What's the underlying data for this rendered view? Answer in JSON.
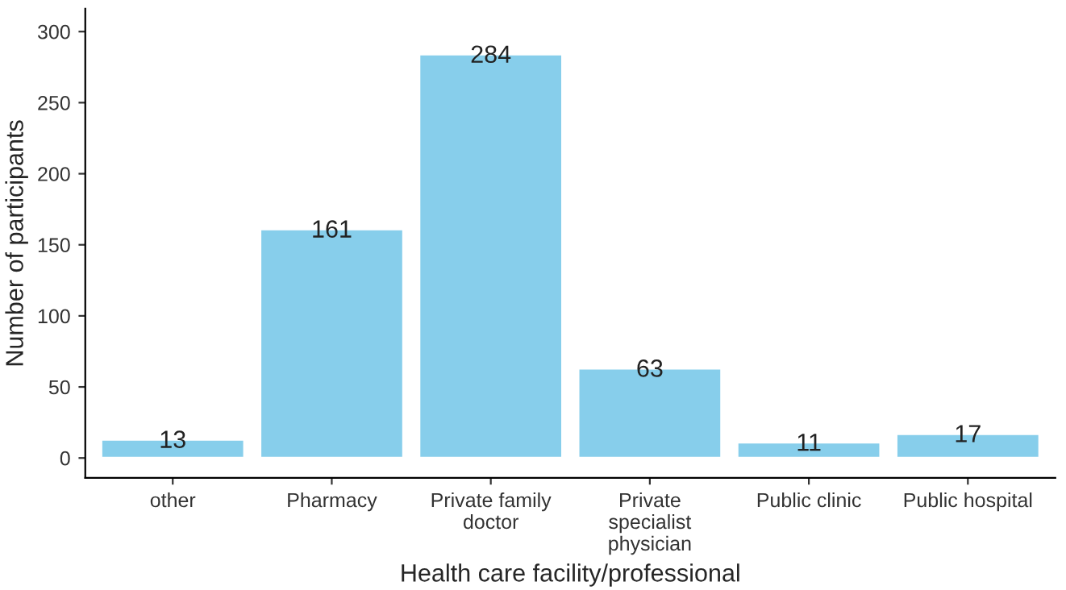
{
  "chart_data": {
    "type": "bar",
    "xlabel": "Health care facility/professional",
    "ylabel": "Number of participants",
    "categories": [
      "other",
      "Pharmacy",
      "Private family\ndoctor",
      "Private\nspecialist\nphysician",
      "Public clinic",
      "Public hospital"
    ],
    "values": [
      13,
      161,
      284,
      63,
      11,
      17
    ],
    "color": "#87ceeb",
    "ylim": [
      -14,
      316
    ],
    "yticks": [
      0,
      50,
      100,
      150,
      200,
      250,
      300
    ],
    "grid": false,
    "data_labels": true
  }
}
